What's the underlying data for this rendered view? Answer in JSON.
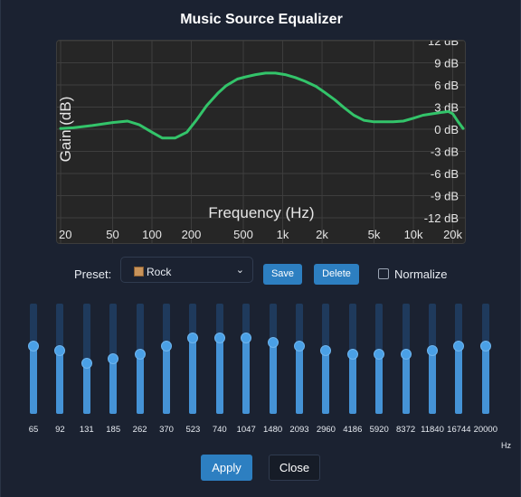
{
  "dialog": {
    "title": "Music Source Equalizer"
  },
  "chart_data": {
    "type": "line",
    "xlabel": "Frequency (Hz)",
    "ylabel": "Gain (dB)",
    "x_scale": "log",
    "xlim": [
      20,
      24000
    ],
    "ylim": [
      -12,
      12
    ],
    "x_ticks": [
      "20",
      "50",
      "100",
      "200",
      "500",
      "1k",
      "2k",
      "5k",
      "10k",
      "20k"
    ],
    "y_ticks": [
      "12 dB",
      "9 dB",
      "6 dB",
      "3 dB",
      "0 dB",
      "-3 dB",
      "-6 dB",
      "-9 dB",
      "-12 dB"
    ],
    "grid": true,
    "line_color": "#33c46a",
    "x": [
      20,
      25,
      35,
      50,
      65,
      80,
      100,
      120,
      150,
      185,
      220,
      262,
      320,
      370,
      450,
      523,
      620,
      740,
      880,
      1047,
      1250,
      1480,
      1800,
      2093,
      2500,
      2960,
      3500,
      4186,
      5000,
      5920,
      7000,
      8372,
      10000,
      11840,
      14000,
      16744,
      18500,
      20000,
      22000,
      24000
    ],
    "y": [
      0.1,
      0.2,
      0.5,
      0.9,
      1.1,
      0.6,
      -0.4,
      -1.2,
      -1.2,
      -0.4,
      1.3,
      3.2,
      4.9,
      5.9,
      6.8,
      7.1,
      7.4,
      7.6,
      7.6,
      7.4,
      7.0,
      6.5,
      5.8,
      5.0,
      4.0,
      2.9,
      1.9,
      1.2,
      1.0,
      1.0,
      1.0,
      1.1,
      1.5,
      1.9,
      2.1,
      2.3,
      2.4,
      2.1,
      1.0,
      0.1
    ]
  },
  "preset": {
    "label": "Preset:",
    "value": "Rock",
    "icon": "package-icon",
    "save_label": "Save",
    "delete_label": "Delete",
    "normalize_label": "Normalize",
    "normalize_checked": false
  },
  "bands": [
    {
      "freq": "65",
      "gain": 3
    },
    {
      "freq": "92",
      "gain": 2
    },
    {
      "freq": "131",
      "gain": -1
    },
    {
      "freq": "185",
      "gain": 0
    },
    {
      "freq": "262",
      "gain": 1
    },
    {
      "freq": "370",
      "gain": 3
    },
    {
      "freq": "523",
      "gain": 5
    },
    {
      "freq": "740",
      "gain": 5
    },
    {
      "freq": "1047",
      "gain": 5
    },
    {
      "freq": "1480",
      "gain": 4
    },
    {
      "freq": "2093",
      "gain": 3
    },
    {
      "freq": "2960",
      "gain": 2
    },
    {
      "freq": "4186",
      "gain": 1
    },
    {
      "freq": "5920",
      "gain": 1
    },
    {
      "freq": "8372",
      "gain": 1
    },
    {
      "freq": "11840",
      "gain": 2
    },
    {
      "freq": "16744",
      "gain": 3
    },
    {
      "freq": "20000",
      "gain": 3
    }
  ],
  "band_range": [
    -12,
    12
  ],
  "hz_unit": "Hz",
  "footer": {
    "apply_label": "Apply",
    "close_label": "Close"
  },
  "colors": {
    "accent": "#2d7fc1",
    "slider_fill": "#4593d6",
    "slider_track": "#1f3a5c",
    "background": "#1b2231",
    "curve": "#33c46a"
  }
}
